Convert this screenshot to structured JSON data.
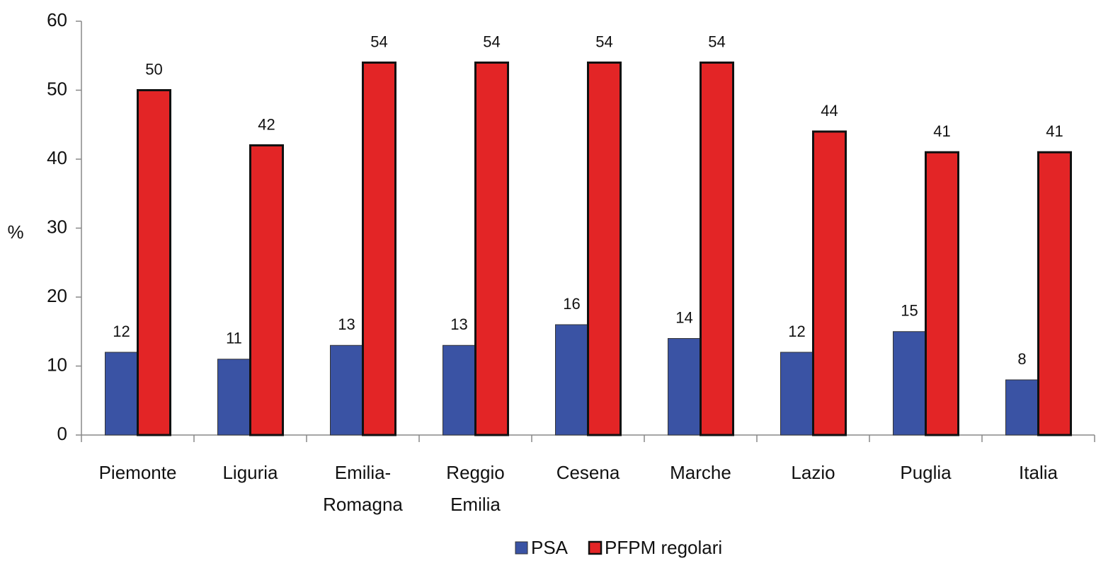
{
  "chart_data": {
    "type": "bar",
    "y_label": "%",
    "categories": [
      "Piemonte",
      "Liguria",
      "Emilia-Romagna",
      "Reggio Emilia",
      "Cesena",
      "Marche",
      "Lazio",
      "Puglia",
      "Italia"
    ],
    "series": [
      {
        "name": "PSA",
        "color": "#3a53a4",
        "values": [
          12,
          11,
          13,
          13,
          16,
          14,
          12,
          15,
          8
        ]
      },
      {
        "name": "PFPM regolari",
        "color": "#e32526",
        "values": [
          50,
          42,
          54,
          54,
          54,
          54,
          44,
          41,
          41
        ]
      }
    ],
    "ylim": [
      0,
      60
    ],
    "yticks": [
      0,
      10,
      20,
      30,
      40,
      50,
      60
    ],
    "grid": false,
    "legend": "bottom"
  }
}
